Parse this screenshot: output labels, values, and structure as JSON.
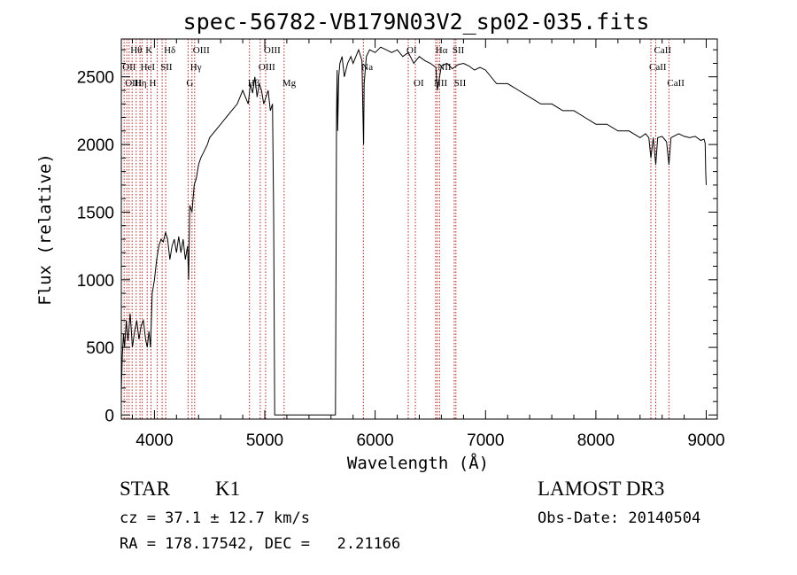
{
  "chart_data": {
    "type": "line",
    "title": "spec-56782-VB179N03V2_sp02-035.fits",
    "xlabel": "Wavelength (Å)",
    "ylabel": "Flux (relative)",
    "xlim": [
      3700,
      9100
    ],
    "ylim": [
      -30,
      2780
    ],
    "xticks": [
      4000,
      5000,
      6000,
      7000,
      8000,
      9000
    ],
    "yticks": [
      0,
      500,
      1000,
      1500,
      2000,
      2500
    ],
    "grid": false,
    "line_color": "#000000",
    "marker_color": "#b22222",
    "series": [
      {
        "x": [
          3700,
          3710,
          3720,
          3730,
          3745,
          3760,
          3780,
          3800,
          3820,
          3840,
          3860,
          3880,
          3900,
          3920,
          3935,
          3950,
          3965,
          3980,
          4000,
          4020,
          4040,
          4060,
          4080,
          4100,
          4120,
          4140,
          4160,
          4180,
          4200,
          4220,
          4240,
          4260,
          4280,
          4300,
          4310,
          4320,
          4340,
          4360,
          4380,
          4400,
          4420,
          4450,
          4480,
          4500,
          4550,
          4600,
          4650,
          4700,
          4750,
          4800,
          4850,
          4870,
          4890,
          4910,
          4930,
          4950,
          4970,
          4990,
          5010,
          5030,
          5050,
          5070,
          5080,
          5090,
          5095,
          5100,
          5102,
          5110,
          5200,
          5300,
          5400,
          5500,
          5600,
          5640,
          5645,
          5650,
          5655,
          5660,
          5665,
          5670,
          5680,
          5700,
          5720,
          5750,
          5780,
          5800,
          5850,
          5880,
          5890,
          5895,
          5900,
          5920,
          5950,
          6000,
          6050,
          6100,
          6150,
          6200,
          6250,
          6300,
          6350,
          6400,
          6450,
          6500,
          6550,
          6563,
          6600,
          6650,
          6700,
          6750,
          6800,
          6850,
          6900,
          6950,
          7000,
          7100,
          7200,
          7300,
          7400,
          7500,
          7600,
          7700,
          7800,
          7900,
          8000,
          8100,
          8200,
          8300,
          8400,
          8450,
          8480,
          8498,
          8520,
          8542,
          8560,
          8600,
          8640,
          8662,
          8680,
          8750,
          8800,
          8850,
          8900,
          8950,
          8980,
          8990,
          8995,
          9000
        ],
        "y": [
          180,
          450,
          600,
          500,
          700,
          550,
          750,
          500,
          620,
          700,
          560,
          660,
          700,
          560,
          500,
          620,
          500,
          900,
          1000,
          1150,
          1250,
          1300,
          1280,
          1350,
          1300,
          1150,
          1250,
          1300,
          1200,
          1320,
          1200,
          1300,
          1150,
          1250,
          1000,
          1550,
          1500,
          1700,
          1750,
          1850,
          1900,
          1950,
          2000,
          2050,
          2100,
          2150,
          2200,
          2250,
          2300,
          2400,
          2300,
          2450,
          2380,
          2500,
          2350,
          2450,
          2400,
          2300,
          2350,
          2400,
          2250,
          2300,
          1500,
          0,
          0,
          0,
          0,
          0,
          0,
          0,
          0,
          0,
          0,
          0,
          1000,
          2200,
          2550,
          2100,
          2300,
          2500,
          2600,
          2650,
          2500,
          2600,
          2650,
          2600,
          2700,
          2620,
          2200,
          2000,
          2450,
          2650,
          2700,
          2680,
          2720,
          2700,
          2680,
          2700,
          2650,
          2680,
          2600,
          2650,
          2620,
          2600,
          2570,
          2400,
          2580,
          2600,
          2560,
          2590,
          2600,
          2580,
          2550,
          2570,
          2550,
          2450,
          2450,
          2400,
          2350,
          2300,
          2300,
          2250,
          2250,
          2200,
          2150,
          2150,
          2100,
          2100,
          2050,
          2080,
          2050,
          1900,
          2050,
          1850,
          2050,
          2060,
          2020,
          1850,
          2050,
          2080,
          2060,
          2050,
          2060,
          2030,
          2040,
          2010,
          1800,
          1700
        ]
      }
    ],
    "line_markers": [
      {
        "wl": 3726,
        "label": "OII",
        "row": 1
      },
      {
        "wl": 3750,
        "label": "OIII",
        "row": 2
      },
      {
        "wl": 3771,
        "label": "",
        "row": 0
      },
      {
        "wl": 3798,
        "label": "Hθ",
        "row": 0
      },
      {
        "wl": 3835,
        "label": "Hη",
        "row": 2
      },
      {
        "wl": 3869,
        "label": "",
        "row": 0
      },
      {
        "wl": 3889,
        "label": "HeI",
        "row": 1
      },
      {
        "wl": 3934,
        "label": "K",
        "row": 0
      },
      {
        "wl": 3969,
        "label": "H",
        "row": 2
      },
      {
        "wl": 4026,
        "label": "",
        "row": 0
      },
      {
        "wl": 4070,
        "label": "SII",
        "row": 1
      },
      {
        "wl": 4102,
        "label": "Hδ",
        "row": 0
      },
      {
        "wl": 4305,
        "label": "G",
        "row": 2
      },
      {
        "wl": 4340,
        "label": "Hγ",
        "row": 1
      },
      {
        "wl": 4364,
        "label": "OIII",
        "row": 0
      },
      {
        "wl": 4861,
        "label": "Hβ",
        "row": 2
      },
      {
        "wl": 4959,
        "label": "OIII",
        "row": 1
      },
      {
        "wl": 5007,
        "label": "OIII",
        "row": 0
      },
      {
        "wl": 5175,
        "label": "Mg",
        "row": 2
      },
      {
        "wl": 5893,
        "label": "Na",
        "row": 1
      },
      {
        "wl": 6300,
        "label": "OI",
        "row": 0
      },
      {
        "wl": 6364,
        "label": "OI",
        "row": 2
      },
      {
        "wl": 6548,
        "label": "NII",
        "row": 2
      },
      {
        "wl": 6563,
        "label": "Hα",
        "row": 0
      },
      {
        "wl": 6583,
        "label": "NII",
        "row": 1
      },
      {
        "wl": 6716,
        "label": "SII",
        "row": 0
      },
      {
        "wl": 6731,
        "label": "SII",
        "row": 2
      },
      {
        "wl": 8498,
        "label": "CaII",
        "row": 1
      },
      {
        "wl": 8542,
        "label": "CaII",
        "row": 0
      },
      {
        "wl": 8662,
        "label": "CaII",
        "row": 2
      }
    ]
  },
  "info": {
    "object_class": "STAR",
    "subclass": "K1",
    "survey": "LAMOST DR3",
    "redshift": "cz = 37.1 ± 12.7 km/s",
    "obs_date": "Obs-Date: 20140504",
    "coords": "RA = 178.17542, DEC =   2.21166"
  }
}
